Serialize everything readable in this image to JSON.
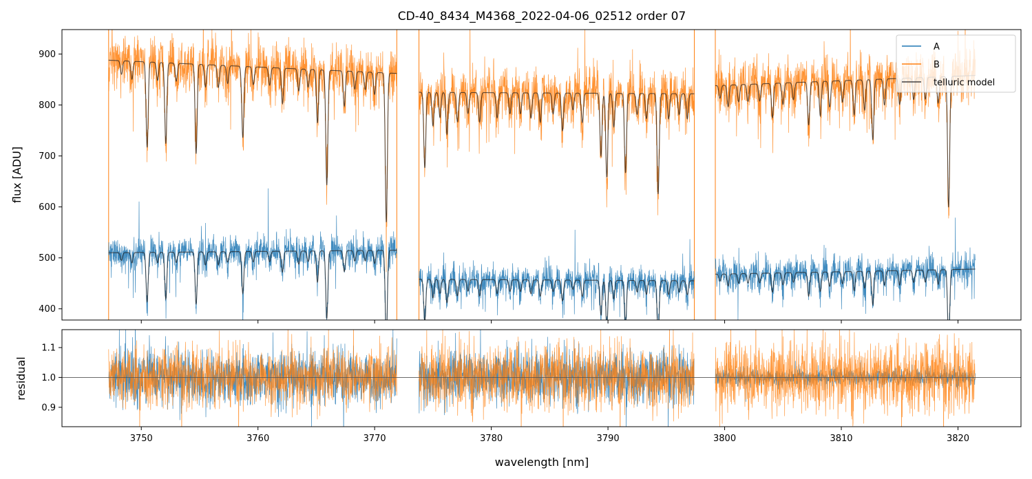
{
  "chart_data": {
    "type": "line",
    "title": "CD-40_8434_M4368_2022-04-06_02512  order 07",
    "xlabel": "wavelength [nm]",
    "xlim": [
      3743.2,
      3825.4
    ],
    "x_ticks": [
      3750,
      3760,
      3770,
      3780,
      3790,
      3800,
      3810,
      3820
    ],
    "x_tick_labels": [
      "3750",
      "3760",
      "3770",
      "3780",
      "3790",
      "3800",
      "3810",
      "3820"
    ],
    "segments": [
      [
        3747.2,
        3771.9
      ],
      [
        3773.8,
        3797.4
      ],
      [
        3799.2,
        3821.5
      ]
    ],
    "legend": {
      "placement": "top-right",
      "entries": [
        "A",
        "B",
        "telluric model"
      ]
    },
    "colors": {
      "A": "#1f77b4",
      "B": "#ff7f0e",
      "model": "#404040",
      "unity": "#555555"
    },
    "top_panel": {
      "ylabel": "flux [ADU]",
      "ylim": [
        378,
        948
      ],
      "y_ticks": [
        400,
        500,
        600,
        700,
        800,
        900
      ],
      "y_tick_labels": [
        "400",
        "500",
        "600",
        "700",
        "800",
        "900"
      ],
      "series": [
        {
          "name": "A",
          "levels": [
            510,
            458,
            468
          ],
          "level_end": [
            515,
            455,
            478
          ],
          "noise": 27
        },
        {
          "name": "B",
          "levels": [
            888,
            825,
            838
          ],
          "level_end": [
            862,
            822,
            858
          ],
          "noise": 45
        },
        {
          "name": "telluric model"
        }
      ],
      "absorption_lines": [
        [
          3748.3,
          0.03
        ],
        [
          3749.2,
          0.04
        ],
        [
          3750.5,
          0.19
        ],
        [
          3751.4,
          0.04
        ],
        [
          3752.1,
          0.18
        ],
        [
          3753.0,
          0.04
        ],
        [
          3754.7,
          0.2
        ],
        [
          3755.5,
          0.05
        ],
        [
          3756.6,
          0.05
        ],
        [
          3757.4,
          0.04
        ],
        [
          3758.7,
          0.16
        ],
        [
          3759.6,
          0.04
        ],
        [
          3761.0,
          0.04
        ],
        [
          3762.1,
          0.08
        ],
        [
          3763.5,
          0.05
        ],
        [
          3764.3,
          0.04
        ],
        [
          3765.1,
          0.12
        ],
        [
          3765.9,
          0.26
        ],
        [
          3767.4,
          0.08
        ],
        [
          3768.3,
          0.04
        ],
        [
          3769.2,
          0.04
        ],
        [
          3770.0,
          0.05
        ],
        [
          3771.0,
          0.34
        ],
        [
          3774.3,
          0.18
        ],
        [
          3775.0,
          0.08
        ],
        [
          3775.6,
          0.06
        ],
        [
          3776.2,
          0.1
        ],
        [
          3777.1,
          0.07
        ],
        [
          3778.0,
          0.05
        ],
        [
          3779.0,
          0.07
        ],
        [
          3780.5,
          0.06
        ],
        [
          3781.6,
          0.05
        ],
        [
          3782.5,
          0.05
        ],
        [
          3783.4,
          0.06
        ],
        [
          3784.2,
          0.07
        ],
        [
          3785.3,
          0.05
        ],
        [
          3786.1,
          0.09
        ],
        [
          3787.0,
          0.04
        ],
        [
          3787.8,
          0.07
        ],
        [
          3789.4,
          0.15
        ],
        [
          3789.9,
          0.2
        ],
        [
          3790.5,
          0.08
        ],
        [
          3791.5,
          0.19
        ],
        [
          3792.5,
          0.05
        ],
        [
          3793.3,
          0.06
        ],
        [
          3794.3,
          0.24
        ],
        [
          3795.2,
          0.06
        ],
        [
          3796.1,
          0.05
        ],
        [
          3796.8,
          0.06
        ],
        [
          3799.6,
          0.03
        ],
        [
          3800.3,
          0.05
        ],
        [
          3801.2,
          0.04
        ],
        [
          3802.0,
          0.04
        ],
        [
          3803.0,
          0.04
        ],
        [
          3804.1,
          0.08
        ],
        [
          3805.0,
          0.05
        ],
        [
          3805.9,
          0.04
        ],
        [
          3807.2,
          0.1
        ],
        [
          3808.2,
          0.08
        ],
        [
          3809.0,
          0.06
        ],
        [
          3810.1,
          0.05
        ],
        [
          3811.1,
          0.08
        ],
        [
          3812.0,
          0.07
        ],
        [
          3812.7,
          0.14
        ],
        [
          3813.7,
          0.06
        ],
        [
          3815.0,
          0.06
        ],
        [
          3816.2,
          0.05
        ],
        [
          3817.2,
          0.05
        ],
        [
          3818.3,
          0.06
        ],
        [
          3819.2,
          0.3
        ]
      ]
    },
    "bottom_panel": {
      "ylabel": "residual",
      "ylim": [
        0.835,
        1.16
      ],
      "y_ticks": [
        0.9,
        1.0,
        1.1
      ],
      "y_tick_labels": [
        "0.9",
        "1.0",
        "1.1"
      ],
      "reference_line": 1.0,
      "series": [
        {
          "name": "A",
          "noise": [
            0.045,
            0.045,
            0.015
          ]
        },
        {
          "name": "B",
          "noise": [
            0.05,
            0.055,
            0.06
          ]
        }
      ]
    }
  }
}
